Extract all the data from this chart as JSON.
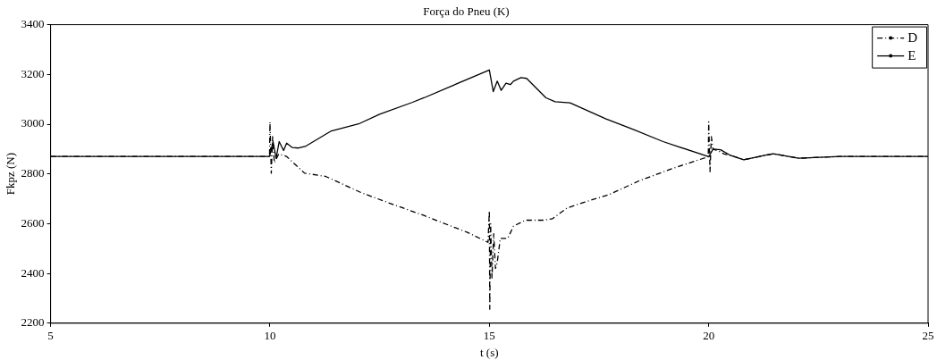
{
  "chart_data": {
    "type": "line",
    "title": "Força do Pneu (K)",
    "xlabel": "t (s)",
    "ylabel": "Fkpz (N)",
    "xlim": [
      5,
      25
    ],
    "xticks": [
      5,
      10,
      15,
      20,
      25
    ],
    "ylim": [
      2200,
      3400
    ],
    "yticks": [
      2200,
      2400,
      2600,
      2800,
      3000,
      3200,
      3400
    ],
    "grid": false,
    "legend": "top right",
    "series": [
      {
        "name": "D",
        "color": "#000000",
        "line_style": "dashed",
        "x": [
          5,
          7,
          9,
          9.99,
          10.0,
          10.03,
          10.06,
          10.1,
          10.2,
          10.38,
          10.79,
          11.27,
          12.09,
          12.84,
          13.51,
          13.87,
          14.5,
          14.97,
          15.0,
          15.01,
          15.03,
          15.06,
          15.1,
          15.14,
          15.18,
          15.25,
          15.42,
          15.55,
          15.82,
          16.23,
          16.44,
          16.77,
          17.18,
          17.73,
          18.41,
          19.16,
          19.99,
          20.0,
          20.03,
          20.06,
          20.1,
          20.25,
          20.35,
          20.5,
          20.8,
          21.47,
          22.05,
          23,
          24,
          25
        ],
        "values": [
          2870,
          2870,
          2870,
          2870,
          3009,
          2803,
          2950,
          2845,
          2880,
          2870,
          2803,
          2790,
          2724,
          2675,
          2633,
          2608,
          2565,
          2525,
          2651,
          2256,
          2600,
          2380,
          2560,
          2420,
          2444,
          2541,
          2541,
          2590,
          2614,
          2614,
          2620,
          2663,
          2687,
          2717,
          2772,
          2821,
          2869,
          3009,
          2809,
          2950,
          2900,
          2890,
          2880,
          2875,
          2857,
          2881,
          2863,
          2870,
          2870,
          2870
        ]
      },
      {
        "name": "E",
        "color": "#000000",
        "line_style": "solid",
        "x": [
          5,
          7,
          9,
          9.99,
          10.07,
          10.14,
          10.21,
          10.31,
          10.38,
          10.51,
          10.65,
          10.82,
          11.4,
          12.02,
          12.5,
          13.25,
          13.51,
          15.0,
          15.09,
          15.18,
          15.27,
          15.38,
          15.48,
          15.55,
          15.72,
          15.85,
          16.29,
          16.5,
          16.84,
          17.66,
          18.28,
          18.96,
          20.0,
          20.1,
          20.27,
          20.48,
          20.8,
          21.3,
          21.47,
          22.05,
          23,
          24,
          25
        ],
        "values": [
          2870,
          2870,
          2870,
          2870,
          2930,
          2863,
          2930,
          2894,
          2924,
          2906,
          2904,
          2912,
          2973,
          3001,
          3040,
          3088,
          3106,
          3218,
          3131,
          3173,
          3136,
          3165,
          3159,
          3173,
          3187,
          3184,
          3106,
          3090,
          3086,
          3021,
          2979,
          2930,
          2869,
          2900,
          2897,
          2876,
          2857,
          2876,
          2881,
          2863,
          2870,
          2870,
          2870
        ]
      }
    ]
  }
}
